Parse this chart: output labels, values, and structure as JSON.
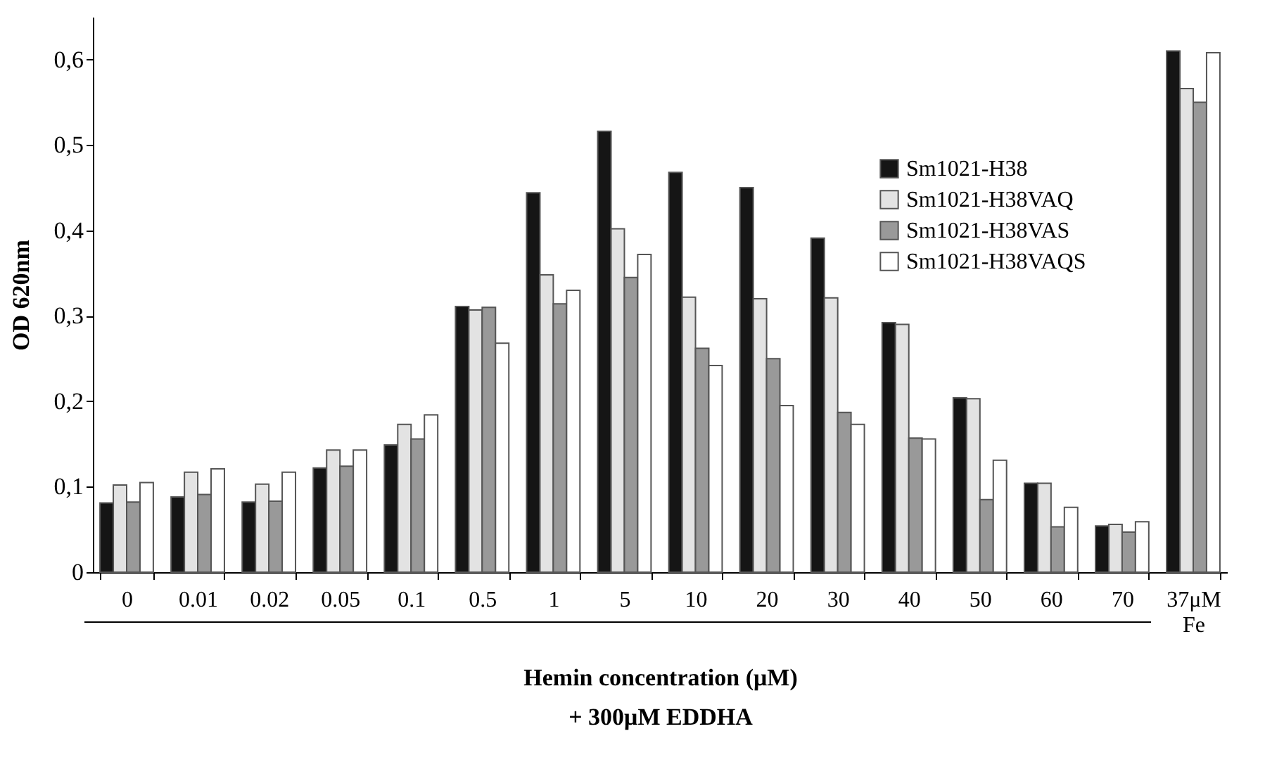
{
  "chart_data": {
    "type": "bar",
    "ylabel": "OD 620nm",
    "xlabel": "Hemin concentration (μM)\n+ 300μM EDDHA",
    "categories": [
      "0",
      "0.01",
      "0.02",
      "0.05",
      "0.1",
      "0.5",
      "1",
      "5",
      "10",
      "20",
      "30",
      "40",
      "50",
      "60",
      "70",
      "37μM\nFe"
    ],
    "series": [
      {
        "name": "Sm1021-H38",
        "color": "#151515",
        "values": [
          0.081,
          0.088,
          0.082,
          0.122,
          0.149,
          0.311,
          0.444,
          0.516,
          0.468,
          0.45,
          0.391,
          0.292,
          0.204,
          0.104,
          0.054,
          0.61
        ]
      },
      {
        "name": "Sm1021-H38VAQ",
        "color": "#e3e3e3",
        "values": [
          0.102,
          0.117,
          0.103,
          0.143,
          0.173,
          0.307,
          0.348,
          0.402,
          0.322,
          0.32,
          0.321,
          0.29,
          0.203,
          0.104,
          0.056,
          0.566
        ]
      },
      {
        "name": "Sm1021-H38VAS",
        "color": "#999999",
        "values": [
          0.082,
          0.091,
          0.083,
          0.124,
          0.156,
          0.31,
          0.314,
          0.345,
          0.262,
          0.25,
          0.187,
          0.157,
          0.085,
          0.053,
          0.047,
          0.55
        ]
      },
      {
        "name": "Sm1021-H38VAQS",
        "color": "#ffffff",
        "values": [
          0.105,
          0.121,
          0.117,
          0.143,
          0.184,
          0.268,
          0.33,
          0.372,
          0.242,
          0.195,
          0.173,
          0.156,
          0.131,
          0.076,
          0.059,
          0.608
        ]
      }
    ],
    "ylim": [
      0,
      0.65
    ],
    "yticks": [
      0,
      {
        "value": 0.1,
        "label": "0,1"
      },
      {
        "value": 0.2,
        "label": "0,2"
      },
      {
        "value": 0.3,
        "label": "0,3"
      },
      {
        "value": 0.4,
        "label": "0,4"
      },
      {
        "value": 0.5,
        "label": "0,5"
      },
      {
        "value": 0.6,
        "label": "0,6"
      }
    ],
    "legend": "top right",
    "grid": false
  }
}
